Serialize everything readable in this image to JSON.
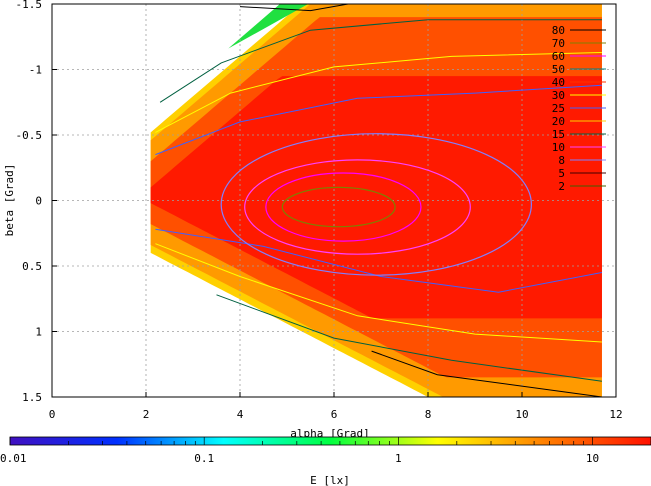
{
  "chart_data": {
    "type": "heatmap",
    "subtype": "contour",
    "xlabel": "alpha [Grad]",
    "ylabel": "beta [Grad]",
    "xlim": [
      0,
      12
    ],
    "ylim": [
      -1.5,
      1.5
    ],
    "y_axis_inverted": true,
    "x_ticks": [
      0,
      2,
      4,
      6,
      8,
      10,
      12
    ],
    "x_tick_labels": [
      "0",
      "2",
      "4",
      "6",
      "8",
      "10",
      "12"
    ],
    "y_ticks": [
      -1.5,
      -1,
      -0.5,
      0,
      0.5,
      1,
      1.5
    ],
    "y_tick_labels": [
      "-1.5",
      "-1",
      "-0.5",
      "0",
      "0.5",
      "1",
      "1.5"
    ],
    "grid": true,
    "legend_position": "top-right",
    "contour_levels": [
      {
        "label": "80",
        "color": "#000000"
      },
      {
        "label": "70",
        "color": "#808000"
      },
      {
        "label": "60",
        "color": "#ff00ff"
      },
      {
        "label": "50",
        "color": "#008080"
      },
      {
        "label": "40",
        "color": "#ff3000"
      },
      {
        "label": "30",
        "color": "#ffff00"
      },
      {
        "label": "25",
        "color": "#4060ff"
      },
      {
        "label": "20",
        "color": "#ffcc00"
      },
      {
        "label": "15",
        "color": "#006040"
      },
      {
        "label": "10",
        "color": "#ff40ff"
      },
      {
        "label": "8",
        "color": "#8080ff"
      },
      {
        "label": "5",
        "color": "#400000"
      },
      {
        "label": "2",
        "color": "#406000"
      }
    ],
    "contour_rings": [
      {
        "cx": 6.1,
        "cy": 0.05,
        "rx": 1.2,
        "ry": 0.15,
        "color": "#808000"
      },
      {
        "cx": 6.2,
        "cy": 0.05,
        "rx": 1.65,
        "ry": 0.26,
        "color": "#ff00ff"
      },
      {
        "cx": 6.5,
        "cy": 0.05,
        "rx": 2.4,
        "ry": 0.36,
        "color": "#ff40ff"
      },
      {
        "cx": 6.9,
        "cy": 0.03,
        "rx": 3.3,
        "ry": 0.54,
        "color": "#8080ff"
      }
    ],
    "outer_contours": [
      {
        "color": "#000000",
        "top": [
          [
            4.0,
            -1.48
          ],
          [
            5.5,
            -1.45
          ],
          [
            6.3,
            -1.5
          ]
        ],
        "bottom": [
          [
            6.8,
            1.15
          ],
          [
            8.2,
            1.33
          ],
          [
            11.7,
            1.5
          ]
        ]
      },
      {
        "color": "#006040",
        "top": [
          [
            2.3,
            -0.75
          ],
          [
            3.6,
            -1.05
          ],
          [
            5.5,
            -1.3
          ],
          [
            8.0,
            -1.38
          ],
          [
            11.7,
            -1.38
          ]
        ],
        "bottom": [
          [
            3.5,
            0.72
          ],
          [
            6.0,
            1.05
          ],
          [
            8.5,
            1.22
          ],
          [
            11.7,
            1.38
          ]
        ]
      },
      {
        "color": "#ffff00",
        "top": [
          [
            2.2,
            -0.52
          ],
          [
            3.8,
            -0.82
          ],
          [
            6.0,
            -1.02
          ],
          [
            8.5,
            -1.1
          ],
          [
            11.7,
            -1.13
          ]
        ],
        "bottom": [
          [
            2.2,
            0.33
          ],
          [
            4.0,
            0.58
          ],
          [
            6.5,
            0.88
          ],
          [
            9.0,
            1.02
          ],
          [
            11.7,
            1.08
          ]
        ]
      },
      {
        "color": "#4060ff",
        "top": [
          [
            2.2,
            -0.35
          ],
          [
            4.0,
            -0.6
          ],
          [
            6.5,
            -0.78
          ],
          [
            9.0,
            -0.82
          ],
          [
            11.7,
            -0.88
          ]
        ],
        "bottom": [
          [
            2.2,
            0.22
          ],
          [
            4.5,
            0.35
          ],
          [
            7.0,
            0.58
          ],
          [
            9.5,
            0.7
          ],
          [
            11.7,
            0.55
          ]
        ]
      }
    ],
    "colorbar": {
      "label": "E [lx]",
      "scale": "log",
      "range": [
        0.01,
        20
      ],
      "tick_labels": [
        "0.01",
        "0.1",
        "1",
        "10"
      ],
      "tick_values": [
        0.01,
        0.1,
        1,
        10
      ],
      "colors": [
        "#4010c0",
        "#0030ff",
        "#00ffff",
        "#00ff40",
        "#ffff00",
        "#ff8000",
        "#ff1000"
      ]
    },
    "region": {
      "x_min": 2.1,
      "x_max": 11.7,
      "edge_top_at_xmin": -0.52,
      "edge_bottom_at_xmin": 0.4,
      "fill_colors": {
        "core": "#ff1a00",
        "mid": "#ff5000",
        "outer": "#ff9a00",
        "edge_yellow": "#ffd000",
        "edge_green": "#20e040"
      }
    }
  }
}
